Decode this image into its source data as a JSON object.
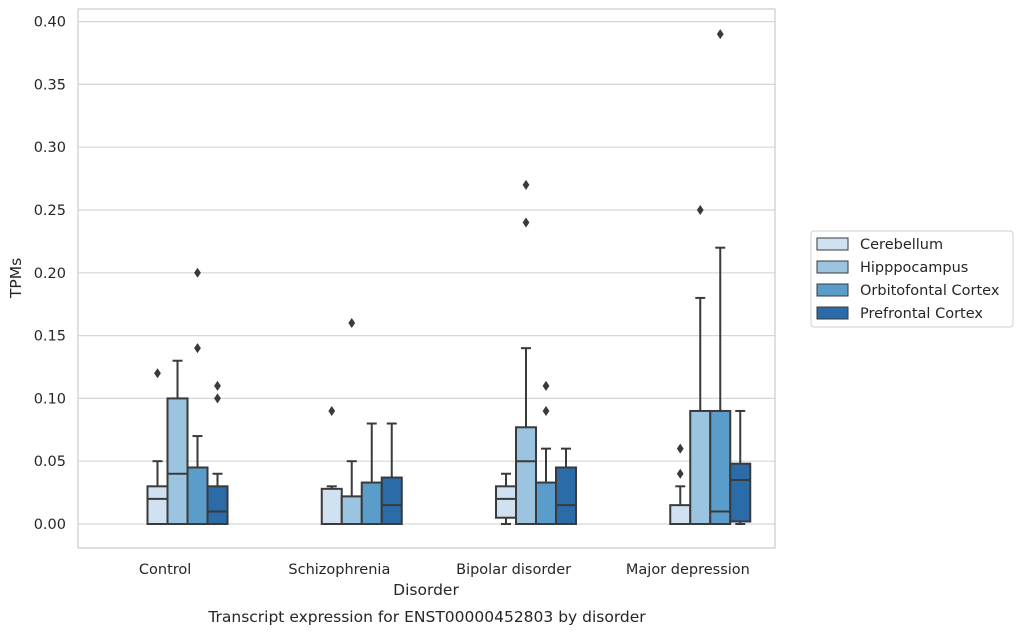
{
  "chart_data": {
    "type": "box",
    "xlabel": "Disorder",
    "ylabel": "TPMs",
    "caption": "Transcript expression for ENST00000452803 by disorder",
    "ylim": [
      -0.02,
      0.41
    ],
    "yticks": [
      "0.00",
      "0.05",
      "0.10",
      "0.15",
      "0.20",
      "0.25",
      "0.30",
      "0.35",
      "0.40"
    ],
    "ytick_values": [
      0.0,
      0.05,
      0.1,
      0.15,
      0.2,
      0.25,
      0.3,
      0.35,
      0.4
    ],
    "grid": true,
    "legend_position": "right",
    "categories": [
      "Control",
      "Schizophrenia",
      "Bipolar disorder",
      "Major depression"
    ],
    "series": [
      {
        "name": "Cerebellum",
        "color": "#d0e2f1",
        "boxes": [
          {
            "q1": 0.0,
            "median": 0.02,
            "q3": 0.03,
            "whisker_low": 0.0,
            "whisker_high": 0.05,
            "outliers": [
              0.12
            ]
          },
          {
            "q1": 0.0,
            "median": 0.0,
            "q3": 0.028,
            "whisker_low": 0.0,
            "whisker_high": 0.03,
            "outliers": [
              0.09
            ]
          },
          {
            "q1": 0.005,
            "median": 0.02,
            "q3": 0.03,
            "whisker_low": 0.0,
            "whisker_high": 0.04,
            "outliers": []
          },
          {
            "q1": 0.0,
            "median": 0.0,
            "q3": 0.015,
            "whisker_low": 0.0,
            "whisker_high": 0.03,
            "outliers": [
              0.04,
              0.06
            ]
          }
        ]
      },
      {
        "name": "Hipppocampus",
        "color": "#9ac4df",
        "boxes": [
          {
            "q1": 0.0,
            "median": 0.04,
            "q3": 0.1,
            "whisker_low": 0.0,
            "whisker_high": 0.13,
            "outliers": []
          },
          {
            "q1": 0.0,
            "median": 0.0,
            "q3": 0.022,
            "whisker_low": 0.0,
            "whisker_high": 0.05,
            "outliers": [
              0.16
            ]
          },
          {
            "q1": 0.0,
            "median": 0.05,
            "q3": 0.077,
            "whisker_low": 0.0,
            "whisker_high": 0.14,
            "outliers": [
              0.24,
              0.27
            ]
          },
          {
            "q1": 0.0,
            "median": 0.0,
            "q3": 0.09,
            "whisker_low": 0.0,
            "whisker_high": 0.18,
            "outliers": [
              0.25
            ]
          }
        ]
      },
      {
        "name": "Orbitofontal Cortex",
        "color": "#5a9dca",
        "boxes": [
          {
            "q1": 0.0,
            "median": 0.0,
            "q3": 0.045,
            "whisker_low": 0.0,
            "whisker_high": 0.07,
            "outliers": [
              0.14,
              0.2
            ]
          },
          {
            "q1": 0.0,
            "median": 0.0,
            "q3": 0.033,
            "whisker_low": 0.0,
            "whisker_high": 0.08,
            "outliers": []
          },
          {
            "q1": 0.0,
            "median": 0.0,
            "q3": 0.033,
            "whisker_low": 0.0,
            "whisker_high": 0.06,
            "outliers": [
              0.09,
              0.11
            ]
          },
          {
            "q1": 0.0,
            "median": 0.01,
            "q3": 0.09,
            "whisker_low": 0.0,
            "whisker_high": 0.22,
            "outliers": [
              0.39
            ]
          }
        ]
      },
      {
        "name": "Prefrontal Cortex",
        "color": "#2b6ba8",
        "boxes": [
          {
            "q1": 0.0,
            "median": 0.01,
            "q3": 0.03,
            "whisker_low": 0.0,
            "whisker_high": 0.04,
            "outliers": [
              0.1,
              0.11
            ]
          },
          {
            "q1": 0.0,
            "median": 0.015,
            "q3": 0.037,
            "whisker_low": 0.0,
            "whisker_high": 0.08,
            "outliers": []
          },
          {
            "q1": 0.0,
            "median": 0.015,
            "q3": 0.045,
            "whisker_low": 0.0,
            "whisker_high": 0.06,
            "outliers": []
          },
          {
            "q1": 0.002,
            "median": 0.035,
            "q3": 0.048,
            "whisker_low": 0.0,
            "whisker_high": 0.09,
            "outliers": []
          }
        ]
      }
    ]
  }
}
